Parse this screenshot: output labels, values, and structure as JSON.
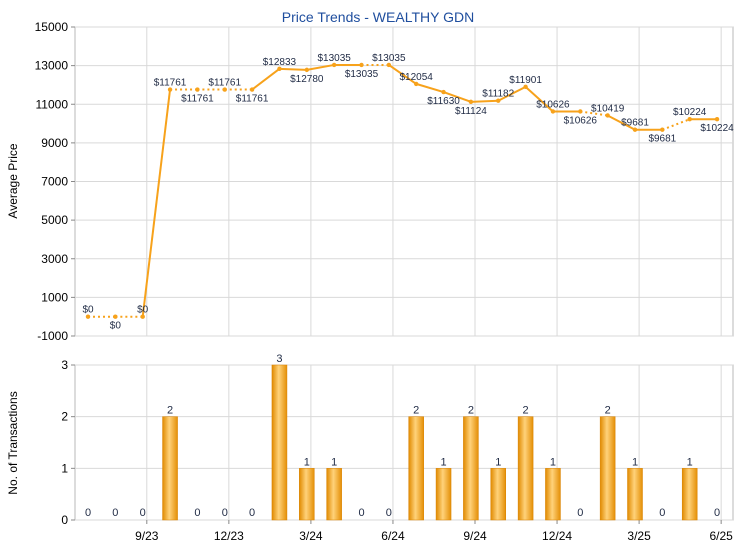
{
  "chart_data": [
    {
      "type": "line",
      "title": "Price Trends - WEALTHY GDN",
      "ylabel": "Average Price",
      "xlabel": "",
      "ylim": [
        -1000,
        15000
      ],
      "yticks": [
        -1000,
        1000,
        3000,
        5000,
        7000,
        9000,
        11000,
        13000,
        15000
      ],
      "x_ticks": [
        "9/23",
        "12/23",
        "3/24",
        "6/24",
        "9/24",
        "12/24",
        "3/25",
        "6/25"
      ],
      "grid": true,
      "line_color": "#f7a21b",
      "points": [
        {
          "value": 0,
          "label": "$0",
          "dashed": true
        },
        {
          "value": 0,
          "label": "$0",
          "dashed": true
        },
        {
          "value": 0,
          "label": "$0",
          "dashed": false
        },
        {
          "value": 11761,
          "label": "$11761",
          "dashed": true
        },
        {
          "value": 11761,
          "label": "$11761",
          "dashed": true
        },
        {
          "value": 11761,
          "label": "$11761",
          "dashed": true
        },
        {
          "value": 11761,
          "label": "$11761",
          "dashed": false
        },
        {
          "value": 12833,
          "label": "$12833",
          "dashed": false
        },
        {
          "value": 12780,
          "label": "$12780",
          "dashed": false
        },
        {
          "value": 13035,
          "label": "$13035",
          "dashed": false
        },
        {
          "value": 13035,
          "label": "$13035",
          "dashed": true
        },
        {
          "value": 13035,
          "label": "$13035",
          "dashed": false
        },
        {
          "value": 12054,
          "label": "$12054",
          "dashed": false
        },
        {
          "value": 11630,
          "label": "$11630",
          "dashed": false
        },
        {
          "value": 11124,
          "label": "$11124",
          "dashed": false
        },
        {
          "value": 11182,
          "label": "$11182",
          "dashed": false
        },
        {
          "value": 11901,
          "label": "$11901",
          "dashed": false
        },
        {
          "value": 10626,
          "label": "$10626",
          "dashed": false
        },
        {
          "value": 10626,
          "label": "$10626",
          "dashed": true
        },
        {
          "value": 10419,
          "label": "$10419",
          "dashed": false
        },
        {
          "value": 9681,
          "label": "$9681",
          "dashed": false
        },
        {
          "value": 9681,
          "label": "$9681",
          "dashed": true
        },
        {
          "value": 10224,
          "label": "$10224",
          "dashed": false
        },
        {
          "value": 10224,
          "label": "$10224",
          "dashed": true
        }
      ]
    },
    {
      "type": "bar",
      "title": "",
      "ylabel": "No. of Transactions",
      "xlabel": "",
      "ylim": [
        0,
        3
      ],
      "yticks": [
        0,
        1,
        2,
        3
      ],
      "x_ticks": [
        "9/23",
        "12/23",
        "3/24",
        "6/24",
        "9/24",
        "12/24",
        "3/25",
        "6/25"
      ],
      "grid": true,
      "bar_color": "#f7a21b",
      "values": [
        0,
        0,
        0,
        2,
        0,
        0,
        0,
        3,
        1,
        1,
        0,
        0,
        2,
        1,
        2,
        1,
        2,
        1,
        0,
        2,
        1,
        0,
        1,
        0
      ]
    }
  ]
}
